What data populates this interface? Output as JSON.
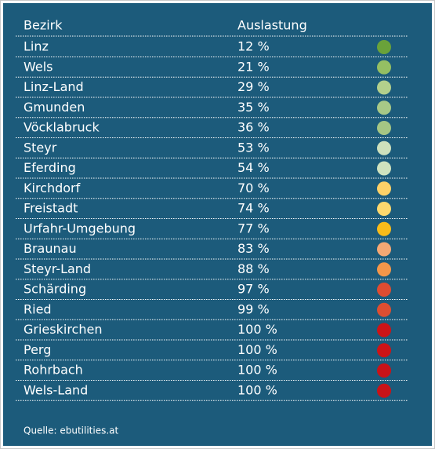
{
  "table": {
    "header": [
      "Bezirk",
      "Auslastung"
    ],
    "rows": [
      {
        "name": "Linz",
        "value": "12 %",
        "color": "#6aa23a"
      },
      {
        "name": "Wels",
        "value": "21 %",
        "color": "#95bf63"
      },
      {
        "name": "Linz-Land",
        "value": "29 %",
        "color": "#b3d08c"
      },
      {
        "name": "Gmunden",
        "value": "35 %",
        "color": "#a8c987"
      },
      {
        "name": "Vöcklabruck",
        "value": "36 %",
        "color": "#a5c684"
      },
      {
        "name": "Steyr",
        "value": "53 %",
        "color": "#cde0bc"
      },
      {
        "name": "Eferding",
        "value": "54 %",
        "color": "#cfe2be"
      },
      {
        "name": "Kirchdorf",
        "value": "70 %",
        "color": "#fdd168"
      },
      {
        "name": "Freistadt",
        "value": "74 %",
        "color": "#fdd86e"
      },
      {
        "name": "Urfahr-Umgebung",
        "value": "77 %",
        "color": "#f8bb1a"
      },
      {
        "name": "Braunau",
        "value": "83 %",
        "color": "#f5a874"
      },
      {
        "name": "Steyr-Land",
        "value": "88 %",
        "color": "#f3964a"
      },
      {
        "name": "Schärding",
        "value": "97 %",
        "color": "#de4c31"
      },
      {
        "name": "Ried",
        "value": "99 %",
        "color": "#dd4e31"
      },
      {
        "name": "Grieskirchen",
        "value": "100 %",
        "color": "#cc1417"
      },
      {
        "name": "Perg",
        "value": "100 %",
        "color": "#cc1417"
      },
      {
        "name": "Rohrbach",
        "value": "100 %",
        "color": "#c81318"
      },
      {
        "name": "Wels-Land",
        "value": "100 %",
        "color": "#c81318"
      }
    ],
    "source": "Quelle: ebutilities.at"
  }
}
